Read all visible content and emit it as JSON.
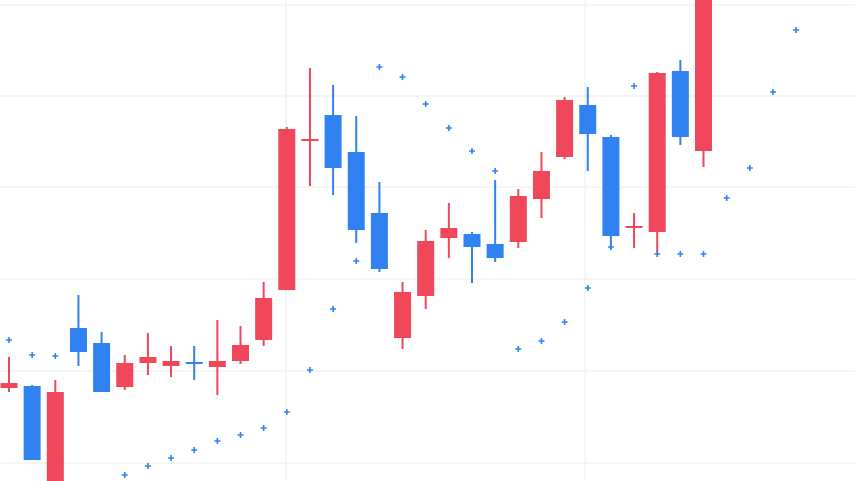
{
  "chart_data": {
    "type": "candlestick",
    "categories": [
      null,
      null,
      null,
      null,
      null,
      null,
      null,
      null,
      null,
      null,
      null,
      null,
      null,
      null,
      null,
      null,
      null,
      null,
      null,
      null,
      null,
      null,
      null,
      null,
      null,
      null,
      null,
      null,
      null,
      null,
      null,
      null,
      null,
      null,
      null
    ],
    "open": [
      93,
      95,
      0,
      153,
      138,
      94,
      118,
      115,
      119,
      114,
      120,
      141,
      191,
      340,
      366,
      329,
      268,
      143,
      185,
      243,
      247,
      237,
      239,
      282,
      324,
      376,
      344,
      253,
      249,
      410,
      330,
      null,
      null,
      null,
      null
    ],
    "high": [
      124,
      96,
      101,
      186,
      149,
      126,
      148,
      135,
      135,
      161,
      155,
      199,
      354,
      413,
      396,
      365,
      299,
      199,
      251,
      278,
      249,
      301,
      292,
      329,
      384,
      394,
      346,
      268,
      409,
      421,
      481,
      null,
      null,
      null,
      null
    ],
    "low": [
      89,
      21,
      0,
      115,
      89,
      91,
      106,
      104,
      101,
      86,
      117,
      135,
      191,
      295,
      286,
      238,
      209,
      132,
      172,
      223,
      198,
      219,
      233,
      263,
      322,
      310,
      232,
      233,
      227,
      336,
      314,
      null,
      null,
      null,
      null
    ],
    "close": [
      98,
      21,
      89,
      129,
      89,
      118,
      124,
      120,
      118,
      120,
      136,
      183,
      352,
      342,
      313,
      251,
      212,
      189,
      240,
      253,
      234,
      223,
      285,
      310,
      381,
      347,
      245,
      255,
      408,
      344,
      481,
      null,
      null,
      null,
      null
    ],
    "sar": [
      141,
      126,
      125,
      null,
      null,
      6,
      15,
      23,
      31,
      40,
      46,
      53,
      69,
      111,
      172,
      220,
      414,
      404,
      377,
      353,
      330,
      310,
      132,
      140,
      159,
      193,
      234,
      395,
      227,
      227,
      227,
      283,
      313,
      389,
      451
    ],
    "up_color": "#f0475a",
    "down_color": "#2f82f0",
    "sar_color": "#2f82f0",
    "ylim": [
      0,
      481
    ],
    "yticks": [
      18,
      110,
      202,
      294,
      385,
      476
    ],
    "grid": true
  }
}
